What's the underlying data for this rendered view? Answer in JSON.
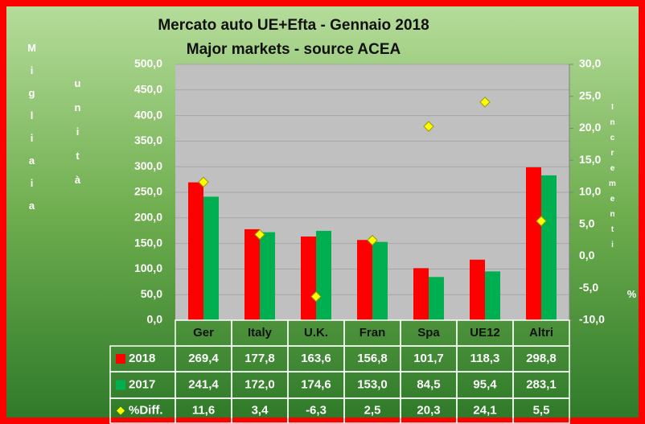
{
  "chart_data": {
    "type": "bar",
    "title": "Mercato auto UE+Efta - Gennaio 2018",
    "subtitle": "Major markets - source ACEA",
    "ylabel": "Migliaia",
    "ylabel2": "unità",
    "y2label": "Incrementi",
    "y2label2": "%",
    "categories": [
      "Ger",
      "Italy",
      "U.K.",
      "Fran",
      "Spa",
      "UE12",
      "Altri"
    ],
    "series": [
      {
        "name": "2018",
        "color": "#ff0000",
        "values": [
          269.4,
          177.8,
          163.6,
          156.8,
          101.7,
          118.3,
          298.8
        ],
        "value_labels": [
          "269,4",
          "177,8",
          "163,6",
          "156,8",
          "101,7",
          "118,3",
          "298,8"
        ]
      },
      {
        "name": "2017",
        "color": "#00b050",
        "values": [
          241.4,
          172.0,
          174.6,
          153.0,
          84.5,
          95.4,
          283.1
        ],
        "value_labels": [
          "241,4",
          "172,0",
          "174,6",
          "153,0",
          "84,5",
          "95,4",
          "283,1"
        ]
      },
      {
        "name": "%Diff.",
        "color": "#ffff00",
        "axis": "y2",
        "values": [
          11.6,
          3.4,
          -6.3,
          2.5,
          20.3,
          24.1,
          5.5
        ],
        "value_labels": [
          "11,6",
          "3,4",
          "-6,3",
          "2,5",
          "20,3",
          "24,1",
          "5,5"
        ]
      }
    ],
    "ylim": [
      0,
      500
    ],
    "yticks": [
      {
        "value": 0,
        "label": "0,0"
      },
      {
        "value": 50,
        "label": "50,0"
      },
      {
        "value": 100,
        "label": "100,0"
      },
      {
        "value": 150,
        "label": "150,0"
      },
      {
        "value": 200,
        "label": "200,0"
      },
      {
        "value": 250,
        "label": "250,0"
      },
      {
        "value": 300,
        "label": "300,0"
      },
      {
        "value": 350,
        "label": "350,0"
      },
      {
        "value": 400,
        "label": "400,0"
      },
      {
        "value": 450,
        "label": "450,0"
      },
      {
        "value": 500,
        "label": "500,0"
      }
    ],
    "y2lim": [
      -10,
      30
    ],
    "y2ticks": [
      {
        "value": -10,
        "label": "-10,0"
      },
      {
        "value": -5,
        "label": "-5,0"
      },
      {
        "value": 0,
        "label": "0,0"
      },
      {
        "value": 5,
        "label": "5,0"
      },
      {
        "value": 10,
        "label": "10,0"
      },
      {
        "value": 15,
        "label": "15,0"
      },
      {
        "value": 20,
        "label": "20,0"
      },
      {
        "value": 25,
        "label": "25,0"
      },
      {
        "value": 30,
        "label": "30,0"
      }
    ],
    "grid": true
  }
}
